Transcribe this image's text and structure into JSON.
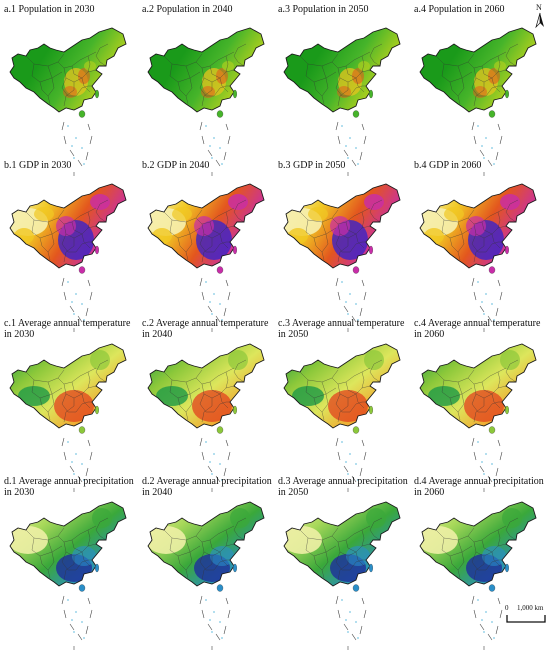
{
  "north_label": "N",
  "scale": {
    "zero": "0",
    "distance": "1,000 km"
  },
  "rows": [
    {
      "theme": "population",
      "colors": [
        "#1a9a1a",
        "#46b42a",
        "#b8d21e",
        "#e6c41e",
        "#e2561a"
      ],
      "panels": [
        {
          "label": "a.1  Population in 2030"
        },
        {
          "label": "a.2  Population in 2040"
        },
        {
          "label": "a.3  Population in 2050"
        },
        {
          "label": "a.4  Population in 2060"
        }
      ]
    },
    {
      "theme": "gdp",
      "colors": [
        "#f6f0b0",
        "#f1c823",
        "#e3561e",
        "#c82da8",
        "#3a23c8"
      ],
      "panels": [
        {
          "label": "b.1 GDP in 2030"
        },
        {
          "label": "b.2 GDP in 2040"
        },
        {
          "label": "b.3 GDP in 2050"
        },
        {
          "label": "b.4 GDP in 2060"
        }
      ]
    },
    {
      "theme": "temperature",
      "colors": [
        "#1e9a46",
        "#8cc83a",
        "#dde65c",
        "#f2a02a",
        "#e2421e"
      ],
      "panels": [
        {
          "label": "c.1 Average annual temperature\nin 2030"
        },
        {
          "label": "c.2 Average annual temperature\nin 2040"
        },
        {
          "label": "c.3 Average annual temperature\nin 2050"
        },
        {
          "label": "c.4 Average annual temperature\nin 2060"
        }
      ]
    },
    {
      "theme": "precipitation",
      "colors": [
        "#eef0a6",
        "#a8d85a",
        "#3aa83a",
        "#2a8ec8",
        "#1e2e9a"
      ],
      "panels": [
        {
          "label": "d.1 Average annual precipitation\nin 2030"
        },
        {
          "label": "d.2 Average annual precipitation\nin 2040"
        },
        {
          "label": "d.3 Average annual precipitation\nin 2050"
        },
        {
          "label": "d.4 Average annual precipitation\nin 2060"
        }
      ]
    }
  ]
}
